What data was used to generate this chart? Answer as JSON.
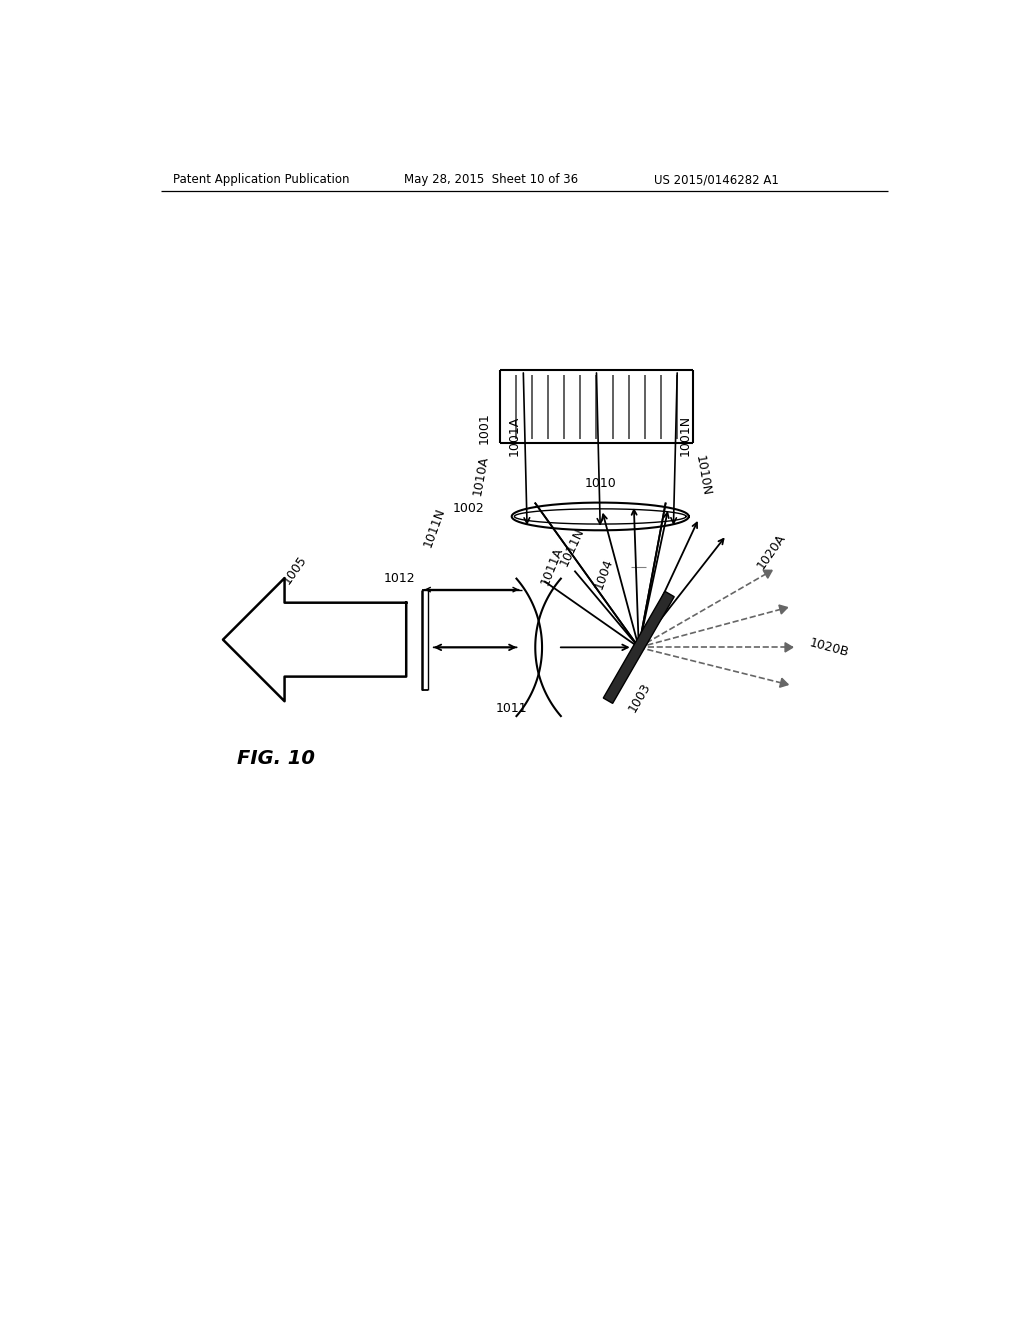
{
  "header_left": "Patent Application Publication",
  "header_mid": "May 28, 2015  Sheet 10 of 36",
  "header_right": "US 2015/0146282 A1",
  "title": "FIG. 10",
  "bg_color": "#ffffff",
  "lc": "#000000",
  "dc": "#888888"
}
